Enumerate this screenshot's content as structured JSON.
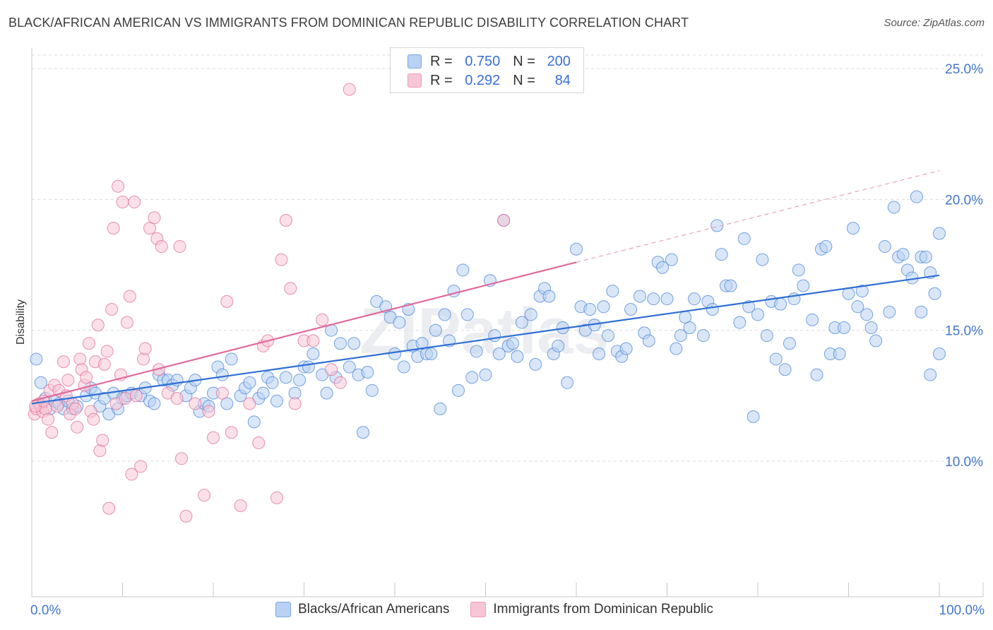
{
  "header": {
    "title": "BLACK/AFRICAN AMERICAN VS IMMIGRANTS FROM DOMINICAN REPUBLIC DISABILITY CORRELATION CHART",
    "source": "Source: ZipAtlas.com"
  },
  "legend": {
    "r_label": "R =",
    "n_label": "N =",
    "rows": [
      {
        "r": "0.750",
        "n": "200",
        "color": "#7aa6e8"
      },
      {
        "r": "0.292",
        "n": "84",
        "color": "#f09ab8"
      }
    ]
  },
  "bottom_legend": [
    {
      "label": "Blacks/African Americans",
      "color": "#7aa6e8"
    },
    {
      "label": "Immigrants from Dominican Republic",
      "color": "#f09ab8"
    }
  ],
  "watermark": "ZIPatlas",
  "chart_data": {
    "type": "scatter",
    "title": "BLACK/AFRICAN AMERICAN VS IMMIGRANTS FROM DOMINICAN REPUBLIC DISABILITY CORRELATION CHART",
    "ylabel": "Disability",
    "xlabel": "",
    "x_ticks": [
      "0.0%",
      "100.0%"
    ],
    "y_ticks": [
      "10.0%",
      "15.0%",
      "20.0%",
      "25.0%"
    ],
    "xlim": [
      0,
      100
    ],
    "ylim": [
      4.5,
      26.5
    ],
    "grid": "horizontal dashed",
    "series": [
      {
        "name": "Blacks/African Americans",
        "color": "#4a86d8",
        "fill": "#b9d1f3",
        "trend": {
          "x": [
            0,
            100
          ],
          "y": [
            12.2,
            17.1
          ]
        },
        "points": [
          [
            0.5,
            13.9
          ],
          [
            1,
            12.1
          ],
          [
            1.5,
            12.4
          ],
          [
            2,
            12.0
          ],
          [
            2.5,
            12.3
          ],
          [
            3,
            12.2
          ],
          [
            3.5,
            12.0
          ],
          [
            4,
            12.3
          ],
          [
            4.5,
            12.0
          ],
          [
            5,
            12.1
          ],
          [
            6,
            12.5
          ],
          [
            6.5,
            12.8
          ],
          [
            7,
            12.6
          ],
          [
            7.5,
            12.1
          ],
          [
            8,
            12.4
          ],
          [
            8.5,
            11.8
          ],
          [
            9,
            12.6
          ],
          [
            9.5,
            12.0
          ],
          [
            10,
            12.4
          ],
          [
            10.5,
            12.5
          ],
          [
            11,
            12.6
          ],
          [
            12,
            12.5
          ],
          [
            12.5,
            12.8
          ],
          [
            13,
            12.3
          ],
          [
            13.5,
            12.2
          ],
          [
            14,
            13.3
          ],
          [
            14.5,
            13.1
          ],
          [
            15,
            13.1
          ],
          [
            15.5,
            12.9
          ],
          [
            16,
            13.1
          ],
          [
            17,
            12.5
          ],
          [
            17.5,
            12.8
          ],
          [
            18,
            13.1
          ],
          [
            18.5,
            11.9
          ],
          [
            19,
            12.2
          ],
          [
            19.5,
            12.1
          ],
          [
            20,
            12.6
          ],
          [
            20.5,
            13.6
          ],
          [
            21,
            13.3
          ],
          [
            21.5,
            12.2
          ],
          [
            22,
            13.9
          ],
          [
            23,
            12.5
          ],
          [
            23.5,
            12.8
          ],
          [
            24,
            13.0
          ],
          [
            24.5,
            11.5
          ],
          [
            25,
            12.4
          ],
          [
            25.5,
            12.6
          ],
          [
            26,
            13.2
          ],
          [
            26.5,
            13.0
          ],
          [
            27,
            12.3
          ],
          [
            28,
            13.2
          ],
          [
            29,
            12.6
          ],
          [
            29.5,
            13.1
          ],
          [
            30,
            13.6
          ],
          [
            30.5,
            13.6
          ],
          [
            31,
            14.1
          ],
          [
            32,
            13.3
          ],
          [
            32.5,
            12.6
          ],
          [
            33,
            15.0
          ],
          [
            33.5,
            13.2
          ],
          [
            34,
            14.5
          ],
          [
            35,
            13.6
          ],
          [
            35.5,
            14.5
          ],
          [
            36,
            13.3
          ],
          [
            36.5,
            11.1
          ],
          [
            37,
            13.4
          ],
          [
            37.5,
            12.7
          ],
          [
            38,
            16.1
          ],
          [
            39,
            15.9
          ],
          [
            39.5,
            15.5
          ],
          [
            40,
            14.1
          ],
          [
            40.5,
            15.3
          ],
          [
            41,
            13.6
          ],
          [
            41.5,
            15.8
          ],
          [
            42,
            14.4
          ],
          [
            42.5,
            14.0
          ],
          [
            43,
            14.5
          ],
          [
            43.5,
            14.1
          ],
          [
            44,
            14.1
          ],
          [
            44.5,
            15.0
          ],
          [
            45,
            12.0
          ],
          [
            45.5,
            15.6
          ],
          [
            46,
            14.6
          ],
          [
            46.5,
            16.5
          ],
          [
            47,
            12.7
          ],
          [
            47.5,
            17.3
          ],
          [
            48,
            15.6
          ],
          [
            48.5,
            13.2
          ],
          [
            49,
            14.2
          ],
          [
            50,
            13.3
          ],
          [
            50.5,
            16.9
          ],
          [
            51,
            14.8
          ],
          [
            51.5,
            14.1
          ],
          [
            52,
            19.2
          ],
          [
            52.5,
            14.4
          ],
          [
            53,
            14.5
          ],
          [
            53.5,
            14.0
          ],
          [
            54,
            15.3
          ],
          [
            55,
            15.6
          ],
          [
            55.5,
            13.7
          ],
          [
            56,
            16.3
          ],
          [
            56.5,
            16.6
          ],
          [
            57,
            16.3
          ],
          [
            57.5,
            14.1
          ],
          [
            58,
            14.4
          ],
          [
            58.5,
            15.1
          ],
          [
            59,
            13.0
          ],
          [
            60,
            18.1
          ],
          [
            60.5,
            15.9
          ],
          [
            61,
            15.0
          ],
          [
            61.5,
            15.8
          ],
          [
            62,
            15.2
          ],
          [
            62.5,
            14.1
          ],
          [
            63,
            15.9
          ],
          [
            63.5,
            14.8
          ],
          [
            64,
            16.5
          ],
          [
            64.5,
            14.2
          ],
          [
            65,
            14.0
          ],
          [
            65.5,
            14.3
          ],
          [
            66,
            15.8
          ],
          [
            67,
            16.3
          ],
          [
            67.5,
            14.9
          ],
          [
            68,
            14.6
          ],
          [
            68.5,
            16.2
          ],
          [
            69,
            17.6
          ],
          [
            69.5,
            17.4
          ],
          [
            70,
            16.2
          ],
          [
            70.5,
            17.7
          ],
          [
            71,
            14.3
          ],
          [
            71.5,
            14.8
          ],
          [
            72,
            15.5
          ],
          [
            72.5,
            15.1
          ],
          [
            73,
            16.2
          ],
          [
            74,
            14.8
          ],
          [
            74.5,
            16.1
          ],
          [
            75,
            15.8
          ],
          [
            75.5,
            19.0
          ],
          [
            76,
            17.9
          ],
          [
            76.5,
            16.7
          ],
          [
            77,
            16.7
          ],
          [
            78,
            15.3
          ],
          [
            78.5,
            18.5
          ],
          [
            79,
            15.9
          ],
          [
            79.5,
            11.7
          ],
          [
            80,
            15.6
          ],
          [
            80.5,
            17.7
          ],
          [
            81,
            14.8
          ],
          [
            81.5,
            16.1
          ],
          [
            82,
            13.9
          ],
          [
            82.5,
            16.0
          ],
          [
            83,
            13.5
          ],
          [
            83.5,
            14.5
          ],
          [
            84,
            16.2
          ],
          [
            84.5,
            17.3
          ],
          [
            85,
            16.7
          ],
          [
            86,
            15.4
          ],
          [
            86.5,
            13.3
          ],
          [
            87,
            18.1
          ],
          [
            87.5,
            18.2
          ],
          [
            88,
            14.1
          ],
          [
            88.5,
            15.1
          ],
          [
            89,
            14.1
          ],
          [
            89.5,
            15.1
          ],
          [
            90,
            16.4
          ],
          [
            90.5,
            18.9
          ],
          [
            91,
            15.9
          ],
          [
            91.5,
            16.5
          ],
          [
            92,
            15.6
          ],
          [
            92.5,
            15.1
          ],
          [
            93,
            14.6
          ],
          [
            94,
            18.2
          ],
          [
            94.5,
            15.7
          ],
          [
            95,
            19.7
          ],
          [
            95.5,
            17.8
          ],
          [
            96,
            17.9
          ],
          [
            96.5,
            17.3
          ],
          [
            97,
            17.0
          ],
          [
            97.5,
            20.1
          ],
          [
            98,
            17.8
          ],
          [
            98.5,
            17.8
          ],
          [
            99,
            17.2
          ],
          [
            99.5,
            16.4
          ],
          [
            100,
            14.1
          ],
          [
            98,
            15.7
          ],
          [
            99,
            13.3
          ],
          [
            100,
            18.7
          ],
          [
            1,
            13.0
          ]
        ]
      },
      {
        "name": "Immigrants from Dominican Republic",
        "color": "#e06e99",
        "fill": "#f7c6d6",
        "trend": {
          "x": [
            0,
            60
          ],
          "y": [
            12.3,
            17.6
          ]
        },
        "trend_extension": {
          "x": [
            60,
            100
          ],
          "y": [
            17.6,
            21.1
          ]
        },
        "points": [
          [
            0.3,
            11.8
          ],
          [
            0.5,
            12.0
          ],
          [
            0.8,
            12.2
          ],
          [
            1,
            12.1
          ],
          [
            1.2,
            11.9
          ],
          [
            1.5,
            12.0
          ],
          [
            1.8,
            11.6
          ],
          [
            2,
            12.7
          ],
          [
            2.2,
            11.1
          ],
          [
            2.5,
            12.9
          ],
          [
            2.8,
            12.1
          ],
          [
            3,
            12.7
          ],
          [
            3.5,
            13.8
          ],
          [
            3.8,
            12.5
          ],
          [
            4,
            13.1
          ],
          [
            4.2,
            11.8
          ],
          [
            4.5,
            12.2
          ],
          [
            4.8,
            12.0
          ],
          [
            5,
            11.3
          ],
          [
            5.3,
            13.9
          ],
          [
            5.5,
            13.5
          ],
          [
            5.8,
            12.9
          ],
          [
            6,
            13.2
          ],
          [
            6.3,
            14.5
          ],
          [
            6.5,
            11.9
          ],
          [
            6.8,
            11.6
          ],
          [
            7,
            13.8
          ],
          [
            7.3,
            15.2
          ],
          [
            7.5,
            10.4
          ],
          [
            7.8,
            10.8
          ],
          [
            8,
            13.7
          ],
          [
            8.3,
            14.2
          ],
          [
            8.5,
            8.2
          ],
          [
            8.8,
            15.8
          ],
          [
            9,
            18.9
          ],
          [
            9.3,
            12.2
          ],
          [
            9.5,
            20.5
          ],
          [
            9.8,
            13.3
          ],
          [
            10,
            19.9
          ],
          [
            10.3,
            12.4
          ],
          [
            10.5,
            15.3
          ],
          [
            10.8,
            16.3
          ],
          [
            11,
            9.5
          ],
          [
            11.3,
            19.9
          ],
          [
            11.5,
            12.5
          ],
          [
            12,
            9.8
          ],
          [
            12.3,
            13.9
          ],
          [
            12.5,
            14.3
          ],
          [
            13,
            18.9
          ],
          [
            13.5,
            19.3
          ],
          [
            13.8,
            18.5
          ],
          [
            14,
            13.5
          ],
          [
            14.3,
            18.2
          ],
          [
            15,
            12.6
          ],
          [
            16,
            12.4
          ],
          [
            16.3,
            18.2
          ],
          [
            16.5,
            10.1
          ],
          [
            17,
            7.9
          ],
          [
            18,
            12.2
          ],
          [
            19,
            8.7
          ],
          [
            19.5,
            11.9
          ],
          [
            20,
            10.9
          ],
          [
            21,
            12.6
          ],
          [
            21.5,
            16.1
          ],
          [
            22,
            11.1
          ],
          [
            23,
            8.3
          ],
          [
            24,
            12.2
          ],
          [
            25,
            10.7
          ],
          [
            25.5,
            14.4
          ],
          [
            26,
            14.6
          ],
          [
            27,
            8.6
          ],
          [
            27.5,
            17.7
          ],
          [
            28,
            19.2
          ],
          [
            28.5,
            16.6
          ],
          [
            29,
            12.2
          ],
          [
            30,
            14.6
          ],
          [
            31,
            14.6
          ],
          [
            32,
            15.4
          ],
          [
            33,
            13.5
          ],
          [
            34,
            13.0
          ],
          [
            35,
            24.2
          ],
          [
            52,
            19.2
          ],
          [
            0.4,
            12.1
          ],
          [
            1.3,
            12.3
          ]
        ]
      }
    ]
  }
}
